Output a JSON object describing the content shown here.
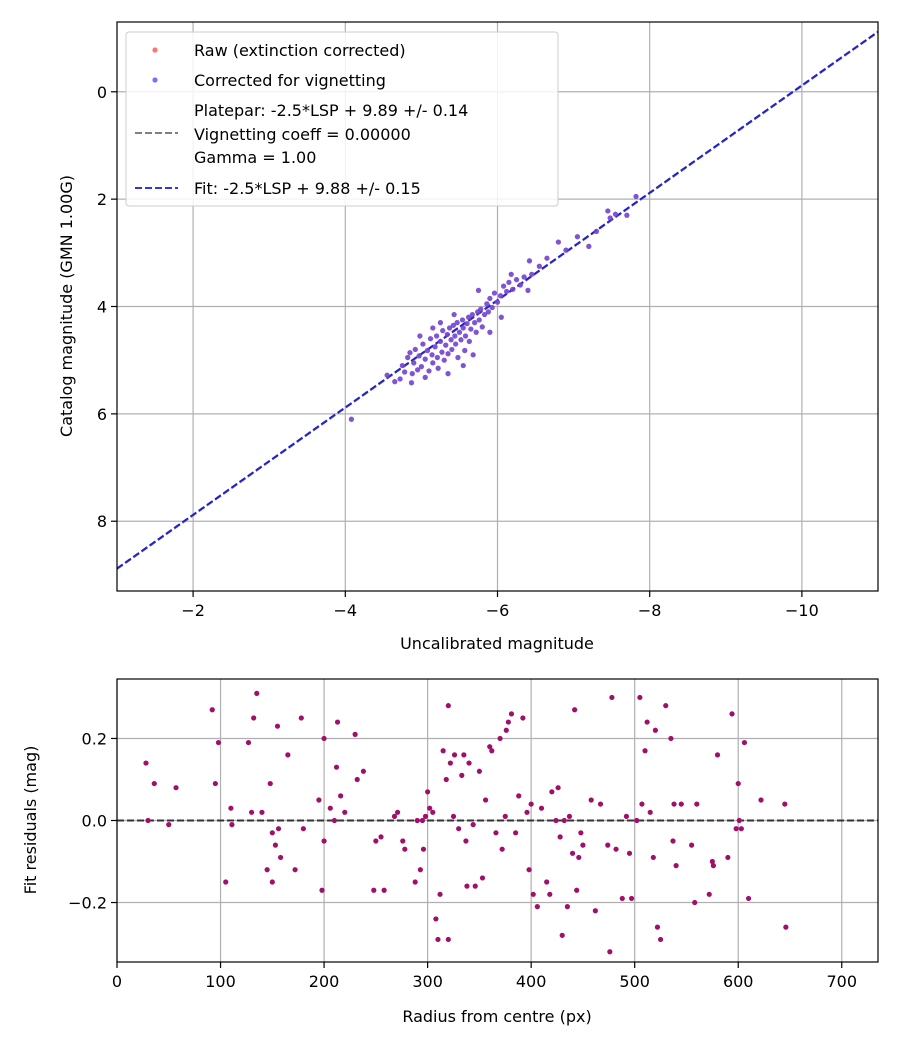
{
  "chart_data": [
    {
      "type": "scatter",
      "xlabel": "Uncalibrated magnitude",
      "ylabel": "Catalog magnitude (GMN 1.00G)",
      "xlim": [
        -1,
        -11
      ],
      "ylim": [
        9.3,
        -1.3
      ],
      "xticks": [
        -2,
        -4,
        -6,
        -8,
        -10
      ],
      "xtick_labels": [
        "−2",
        "−4",
        "−6",
        "−8",
        "−10"
      ],
      "yticks": [
        0,
        2,
        4,
        6,
        8
      ],
      "ytick_labels": [
        "0",
        "2",
        "4",
        "6",
        "8"
      ],
      "grid": true,
      "legend_position": "top-left",
      "legend": {
        "raw": "Raw (extinction corrected)",
        "corrected": "Corrected for vignetting",
        "platepar_lines": [
          "Platepar: -2.5*LSP + 9.89 +/- 0.14",
          "Vignetting coeff = 0.00000",
          "Gamma = 1.00"
        ],
        "fit": "Fit: -2.5*LSP + 9.88 +/- 0.15"
      },
      "platepar_line": {
        "slope": 1,
        "intercept": 9.89,
        "color": "#808080"
      },
      "fit_line": {
        "slope": 1,
        "intercept": 9.88,
        "color": "#2222cc"
      },
      "colors": {
        "raw": "#ff4444",
        "corrected": "#4444ff",
        "overlap": "#6a1fc8"
      },
      "points": [
        [
          -4.08,
          6.1
        ],
        [
          -4.55,
          5.28
        ],
        [
          -4.72,
          5.35
        ],
        [
          -4.75,
          5.1
        ],
        [
          -4.78,
          5.22
        ],
        [
          -4.82,
          4.95
        ],
        [
          -4.85,
          4.86
        ],
        [
          -4.88,
          5.25
        ],
        [
          -4.9,
          5.05
        ],
        [
          -4.92,
          4.8
        ],
        [
          -4.95,
          5.18
        ],
        [
          -4.97,
          4.92
        ],
        [
          -5.0,
          5.12
        ],
        [
          -5.02,
          4.7
        ],
        [
          -5.05,
          4.98
        ],
        [
          -5.05,
          5.32
        ],
        [
          -5.08,
          4.82
        ],
        [
          -5.1,
          5.2
        ],
        [
          -5.12,
          4.6
        ],
        [
          -5.14,
          4.9
        ],
        [
          -5.15,
          5.05
        ],
        [
          -5.18,
          4.75
        ],
        [
          -5.2,
          4.55
        ],
        [
          -5.21,
          4.95
        ],
        [
          -5.22,
          5.15
        ],
        [
          -5.25,
          4.65
        ],
        [
          -5.27,
          4.85
        ],
        [
          -5.28,
          4.45
        ],
        [
          -5.3,
          5.0
        ],
        [
          -5.32,
          4.72
        ],
        [
          -5.34,
          4.52
        ],
        [
          -5.35,
          4.88
        ],
        [
          -5.37,
          4.4
        ],
        [
          -5.39,
          4.62
        ],
        [
          -5.4,
          4.8
        ],
        [
          -5.42,
          4.35
        ],
        [
          -5.44,
          4.55
        ],
        [
          -5.45,
          4.7
        ],
        [
          -5.47,
          4.3
        ],
        [
          -5.48,
          4.95
        ],
        [
          -5.5,
          4.48
        ],
        [
          -5.52,
          4.62
        ],
        [
          -5.54,
          4.25
        ],
        [
          -5.55,
          4.4
        ],
        [
          -5.57,
          4.82
        ],
        [
          -5.58,
          4.55
        ],
        [
          -5.6,
          4.32
        ],
        [
          -5.62,
          4.2
        ],
        [
          -5.63,
          4.65
        ],
        [
          -5.65,
          4.42
        ],
        [
          -5.67,
          4.15
        ],
        [
          -5.7,
          4.3
        ],
        [
          -5.72,
          4.48
        ],
        [
          -5.74,
          4.1
        ],
        [
          -5.76,
          4.25
        ],
        [
          -5.78,
          4.05
        ],
        [
          -5.8,
          4.38
        ],
        [
          -5.83,
          4.15
        ],
        [
          -5.86,
          3.95
        ],
        [
          -5.88,
          4.1
        ],
        [
          -5.9,
          3.85
        ],
        [
          -5.93,
          4.02
        ],
        [
          -5.96,
          3.75
        ],
        [
          -6.0,
          3.92
        ],
        [
          -6.04,
          3.8
        ],
        [
          -6.08,
          3.62
        ],
        [
          -6.12,
          3.72
        ],
        [
          -6.15,
          3.55
        ],
        [
          -6.2,
          3.68
        ],
        [
          -6.25,
          3.5
        ],
        [
          -6.3,
          3.6
        ],
        [
          -6.35,
          3.45
        ],
        [
          -6.42,
          3.15
        ],
        [
          -6.45,
          3.4
        ],
        [
          -6.55,
          3.25
        ],
        [
          -6.65,
          3.1
        ],
        [
          -6.8,
          2.8
        ],
        [
          -6.9,
          2.95
        ],
        [
          -7.05,
          2.7
        ],
        [
          -7.2,
          2.88
        ],
        [
          -7.3,
          2.6
        ],
        [
          -7.45,
          2.22
        ],
        [
          -7.48,
          2.35
        ],
        [
          -7.55,
          2.28
        ],
        [
          -7.7,
          2.3
        ],
        [
          -7.82,
          1.95
        ],
        [
          -5.15,
          4.4
        ],
        [
          -5.55,
          5.1
        ],
        [
          -4.65,
          5.4
        ],
        [
          -6.05,
          4.2
        ],
        [
          -5.75,
          3.7
        ],
        [
          -4.98,
          4.55
        ],
        [
          -5.9,
          4.48
        ],
        [
          -5.35,
          5.25
        ],
        [
          -6.4,
          3.7
        ],
        [
          -4.87,
          5.42
        ],
        [
          -5.25,
          4.3
        ],
        [
          -6.18,
          3.4
        ],
        [
          -5.68,
          4.9
        ],
        [
          -5.43,
          4.15
        ]
      ]
    },
    {
      "type": "scatter",
      "xlabel": "Radius from centre (px)",
      "ylabel": "Fit residuals (mag)",
      "xlim": [
        0,
        735
      ],
      "ylim": [
        -0.345,
        0.345
      ],
      "xticks": [
        0,
        100,
        200,
        300,
        400,
        500,
        600,
        700
      ],
      "xtick_labels": [
        "0",
        "100",
        "200",
        "300",
        "400",
        "500",
        "600",
        "700"
      ],
      "yticks": [
        -0.2,
        0.0,
        0.2
      ],
      "ytick_labels": [
        "−0.2",
        "0.0",
        "0.2"
      ],
      "grid": true,
      "zero_line": {
        "y": 0,
        "color": "#333333"
      },
      "color": "#a0106a",
      "points": [
        [
          28,
          0.14
        ],
        [
          30,
          0.0
        ],
        [
          36,
          0.09
        ],
        [
          50,
          -0.01
        ],
        [
          57,
          0.08
        ],
        [
          92,
          0.27
        ],
        [
          95,
          0.09
        ],
        [
          98,
          0.19
        ],
        [
          105,
          -0.15
        ],
        [
          110,
          0.03
        ],
        [
          111,
          -0.01
        ],
        [
          127,
          0.19
        ],
        [
          130,
          0.02
        ],
        [
          132,
          0.25
        ],
        [
          135,
          0.31
        ],
        [
          140,
          0.02
        ],
        [
          145,
          -0.12
        ],
        [
          148,
          0.09
        ],
        [
          150,
          -0.03
        ],
        [
          150,
          -0.15
        ],
        [
          153,
          -0.06
        ],
        [
          155,
          0.23
        ],
        [
          156,
          -0.02
        ],
        [
          158,
          -0.09
        ],
        [
          165,
          0.16
        ],
        [
          172,
          -0.12
        ],
        [
          178,
          0.25
        ],
        [
          180,
          -0.02
        ],
        [
          195,
          0.05
        ],
        [
          198,
          -0.17
        ],
        [
          200,
          0.2
        ],
        [
          200,
          -0.05
        ],
        [
          206,
          0.03
        ],
        [
          210,
          0.0
        ],
        [
          212,
          0.13
        ],
        [
          213,
          0.24
        ],
        [
          216,
          0.06
        ],
        [
          220,
          0.02
        ],
        [
          230,
          0.21
        ],
        [
          232,
          0.1
        ],
        [
          238,
          0.12
        ],
        [
          248,
          -0.17
        ],
        [
          250,
          -0.05
        ],
        [
          255,
          -0.04
        ],
        [
          258,
          -0.17
        ],
        [
          268,
          0.01
        ],
        [
          271,
          0.02
        ],
        [
          276,
          -0.05
        ],
        [
          278,
          -0.07
        ],
        [
          288,
          -0.15
        ],
        [
          290,
          0.0
        ],
        [
          293,
          -0.12
        ],
        [
          295,
          0.0
        ],
        [
          296,
          -0.07
        ],
        [
          298,
          0.01
        ],
        [
          300,
          0.07
        ],
        [
          302,
          0.03
        ],
        [
          305,
          0.02
        ],
        [
          308,
          -0.24
        ],
        [
          310,
          -0.29
        ],
        [
          312,
          -0.18
        ],
        [
          315,
          0.17
        ],
        [
          318,
          0.1
        ],
        [
          320,
          -0.29
        ],
        [
          320,
          0.28
        ],
        [
          322,
          0.14
        ],
        [
          325,
          0.01
        ],
        [
          326,
          0.16
        ],
        [
          330,
          -0.02
        ],
        [
          333,
          0.11
        ],
        [
          335,
          0.16
        ],
        [
          337,
          -0.05
        ],
        [
          338,
          -0.16
        ],
        [
          340,
          0.14
        ],
        [
          344,
          -0.01
        ],
        [
          346,
          -0.16
        ],
        [
          350,
          0.12
        ],
        [
          353,
          -0.14
        ],
        [
          356,
          0.05
        ],
        [
          360,
          0.18
        ],
        [
          362,
          0.17
        ],
        [
          366,
          -0.03
        ],
        [
          370,
          0.2
        ],
        [
          372,
          -0.07
        ],
        [
          375,
          0.01
        ],
        [
          376,
          0.22
        ],
        [
          378,
          0.24
        ],
        [
          381,
          0.26
        ],
        [
          385,
          -0.03
        ],
        [
          388,
          0.06
        ],
        [
          392,
          0.25
        ],
        [
          396,
          0.02
        ],
        [
          398,
          -0.12
        ],
        [
          400,
          0.04
        ],
        [
          402,
          -0.18
        ],
        [
          406,
          -0.21
        ],
        [
          410,
          0.03
        ],
        [
          415,
          -0.15
        ],
        [
          418,
          -0.18
        ],
        [
          420,
          0.07
        ],
        [
          424,
          0.0
        ],
        [
          426,
          0.08
        ],
        [
          428,
          -0.04
        ],
        [
          430,
          -0.28
        ],
        [
          432,
          0.0
        ],
        [
          435,
          -0.21
        ],
        [
          437,
          0.01
        ],
        [
          440,
          -0.08
        ],
        [
          442,
          0.27
        ],
        [
          444,
          -0.17
        ],
        [
          446,
          -0.09
        ],
        [
          448,
          -0.03
        ],
        [
          450,
          -0.06
        ],
        [
          458,
          0.05
        ],
        [
          462,
          -0.22
        ],
        [
          467,
          0.04
        ],
        [
          474,
          -0.06
        ],
        [
          476,
          -0.32
        ],
        [
          478,
          0.3
        ],
        [
          482,
          -0.07
        ],
        [
          488,
          -0.19
        ],
        [
          492,
          0.01
        ],
        [
          495,
          -0.08
        ],
        [
          497,
          -0.19
        ],
        [
          502,
          0.0
        ],
        [
          505,
          0.3
        ],
        [
          507,
          0.04
        ],
        [
          510,
          0.17
        ],
        [
          512,
          0.24
        ],
        [
          515,
          0.02
        ],
        [
          518,
          -0.09
        ],
        [
          520,
          0.22
        ],
        [
          522,
          -0.26
        ],
        [
          525,
          -0.29
        ],
        [
          530,
          0.28
        ],
        [
          535,
          0.2
        ],
        [
          537,
          -0.05
        ],
        [
          538,
          0.04
        ],
        [
          540,
          -0.11
        ],
        [
          545,
          0.04
        ],
        [
          555,
          -0.06
        ],
        [
          558,
          -0.2
        ],
        [
          560,
          0.04
        ],
        [
          572,
          -0.18
        ],
        [
          575,
          -0.1
        ],
        [
          576,
          -0.11
        ],
        [
          580,
          0.16
        ],
        [
          590,
          -0.09
        ],
        [
          594,
          0.26
        ],
        [
          598,
          -0.02
        ],
        [
          600,
          0.09
        ],
        [
          601,
          0.0
        ],
        [
          603,
          -0.02
        ],
        [
          606,
          0.19
        ],
        [
          610,
          -0.19
        ],
        [
          622,
          0.05
        ],
        [
          645,
          0.04
        ],
        [
          646,
          -0.26
        ]
      ]
    }
  ]
}
